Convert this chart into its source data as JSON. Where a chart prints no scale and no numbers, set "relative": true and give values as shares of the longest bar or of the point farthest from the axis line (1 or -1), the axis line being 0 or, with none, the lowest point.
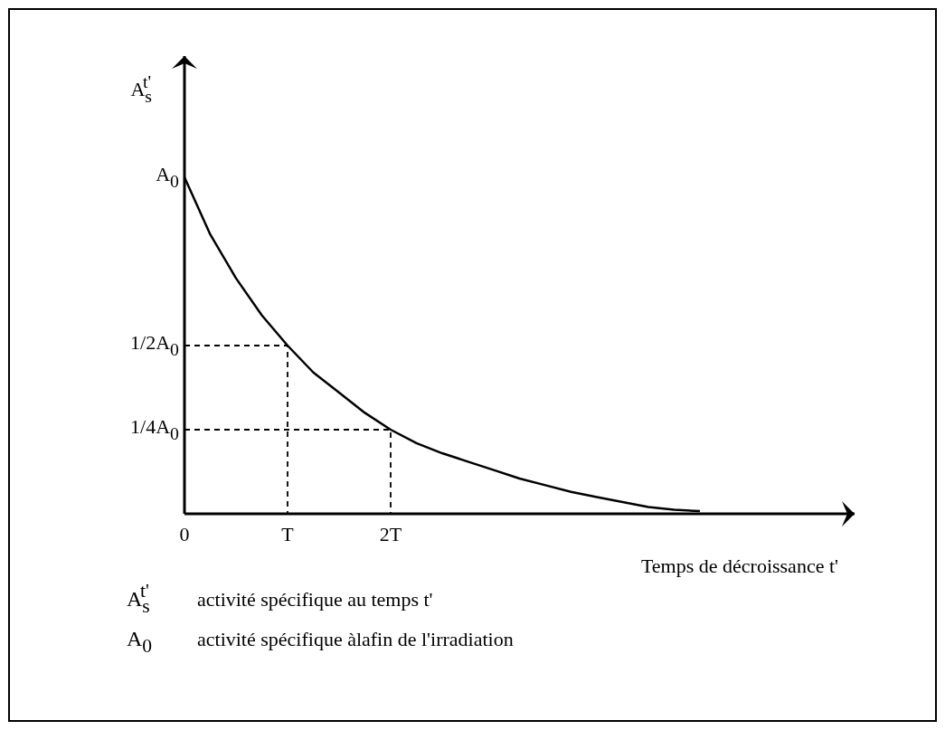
{
  "chart_data": {
    "type": "line",
    "relative": true,
    "xlabel": "Temps de décroissance t'",
    "ylabel": "A$_{s}$$^{t'}$",
    "categories": [
      "0",
      null,
      null,
      null,
      "T",
      null,
      null,
      null,
      "2T",
      null,
      null,
      null,
      null,
      null,
      null,
      null,
      null,
      null,
      null,
      null,
      null
    ],
    "marker": "none",
    "line_style": "solid",
    "series": [
      {
        "color": "#000000",
        "values": [
          1,
          0.83,
          0.7,
          0.59,
          0.5,
          0.42,
          0.36,
          0.3,
          0.25,
          0.21,
          0.18,
          0.155,
          0.13,
          0.105,
          0.085,
          0.065,
          0.05,
          0.035,
          0.02,
          0.012,
          0.008
        ]
      }
    ],
    "ref_lines": [
      {
        "axis": "y",
        "value": 0.5,
        "label": "1/2A$_{0}$",
        "line_style": "dashed",
        "color": "#000000"
      },
      {
        "axis": "y",
        "value": 0.25,
        "label": "1/4A$_{0}$",
        "line_style": "dashed",
        "color": "#000000"
      }
    ],
    "annotations": [
      {
        "text": "A$_{0}$",
        "x": "0",
        "y": 1
      },
      "A$_{s}$$^{t'}$ activité spécifique au temps t'",
      "A$_{0}$ activité spécifique àlafin de l'irradiation"
    ]
  }
}
